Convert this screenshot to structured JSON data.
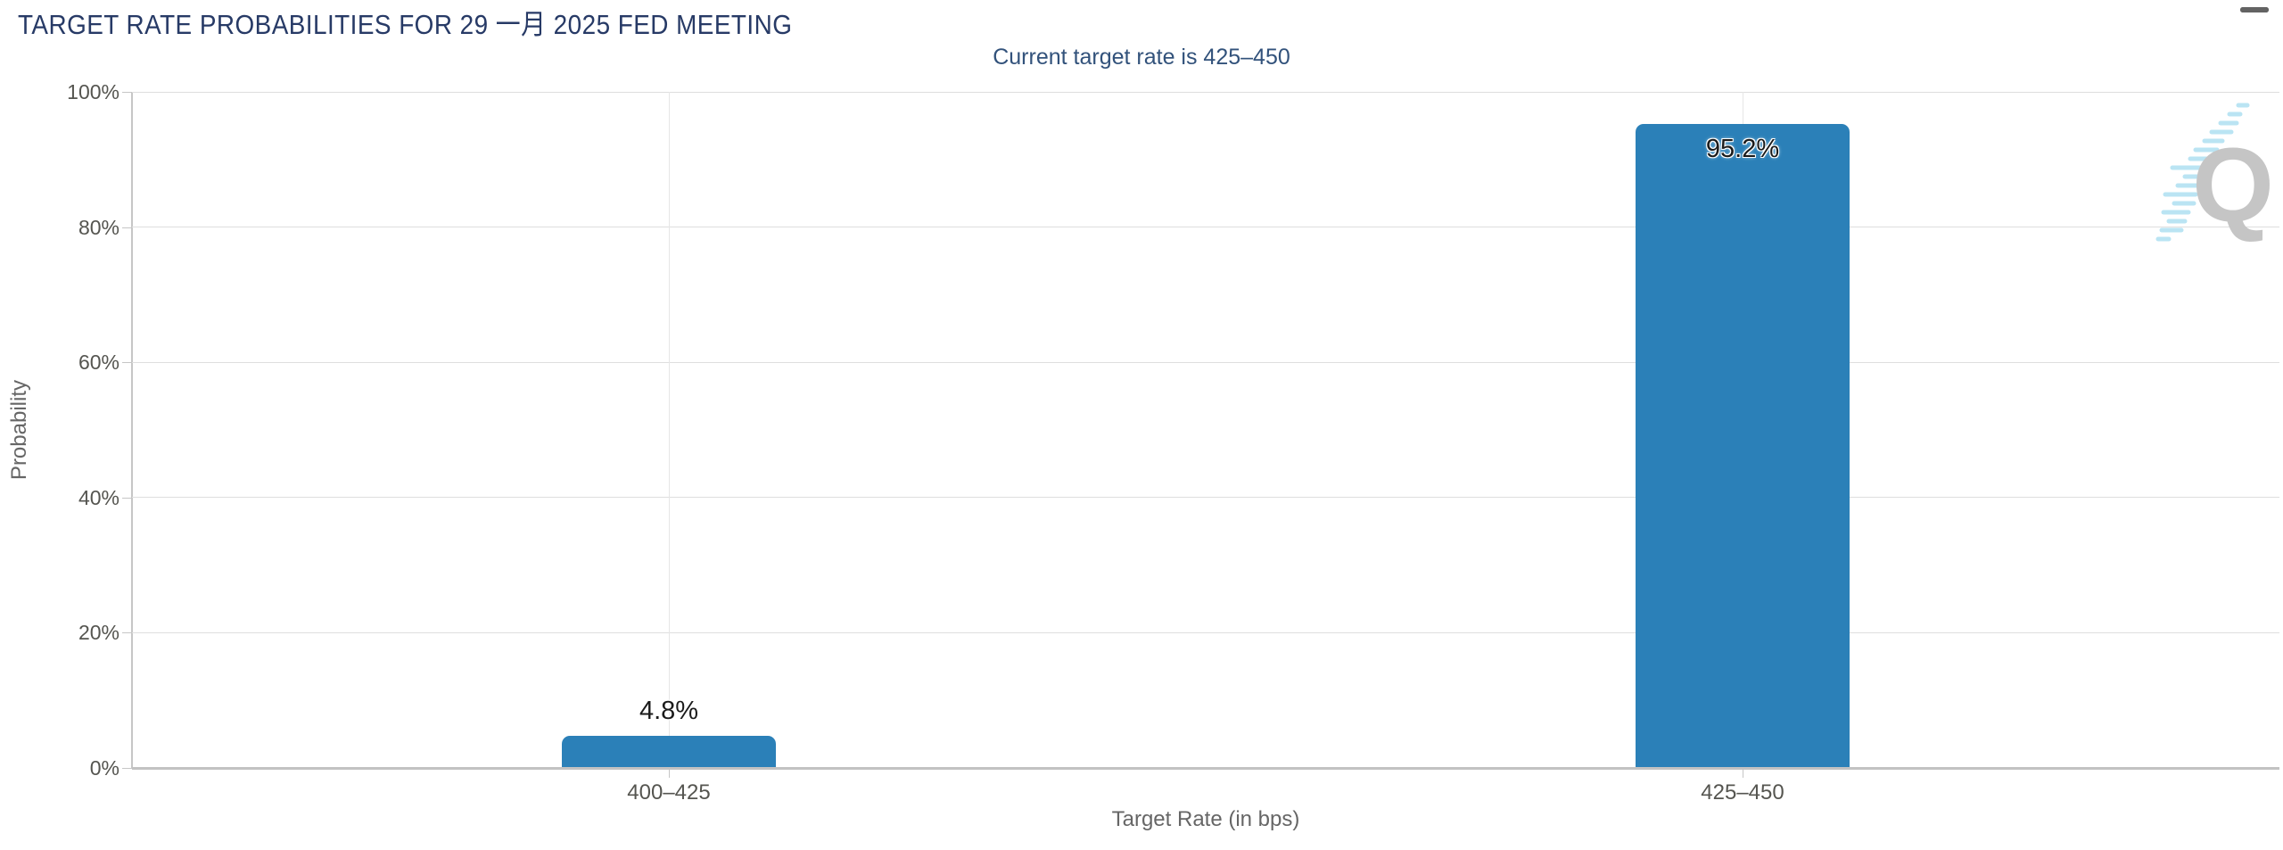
{
  "header": {
    "title": "TARGET RATE PROBABILITIES FOR 29 一月 2025 FED MEETING",
    "subtitle": "Current target rate is 425–450",
    "menu_icon": "hamburger-icon"
  },
  "watermark": {
    "letter": "Q"
  },
  "chart_data": {
    "type": "bar",
    "title": "TARGET RATE PROBABILITIES FOR 29 一月 2025 FED MEETING",
    "subtitle": "Current target rate is 425–450",
    "categories": [
      "400–425",
      "425–450"
    ],
    "values": [
      4.8,
      95.2
    ],
    "value_labels": [
      "4.8%",
      "95.2%"
    ],
    "xlabel": "Target Rate (in bps)",
    "ylabel": "Probability",
    "ylim": [
      0,
      100
    ],
    "yticks": [
      0,
      20,
      40,
      60,
      80,
      100
    ],
    "ytick_labels": [
      "0%",
      "20%",
      "40%",
      "60%",
      "80%",
      "100%"
    ],
    "bar_color": "#2b80b8",
    "grid": true,
    "legend": false
  },
  "colors": {
    "title": "#273a66",
    "subtitle": "#32527b",
    "bar": "#2b80b8",
    "gridline": "#dedede",
    "axis_line": "#c6c6c6",
    "tick_label": "#555550",
    "axis_title": "#666666",
    "watermark_gray": "#c5c5c5",
    "watermark_blue": "#aee0f2"
  }
}
